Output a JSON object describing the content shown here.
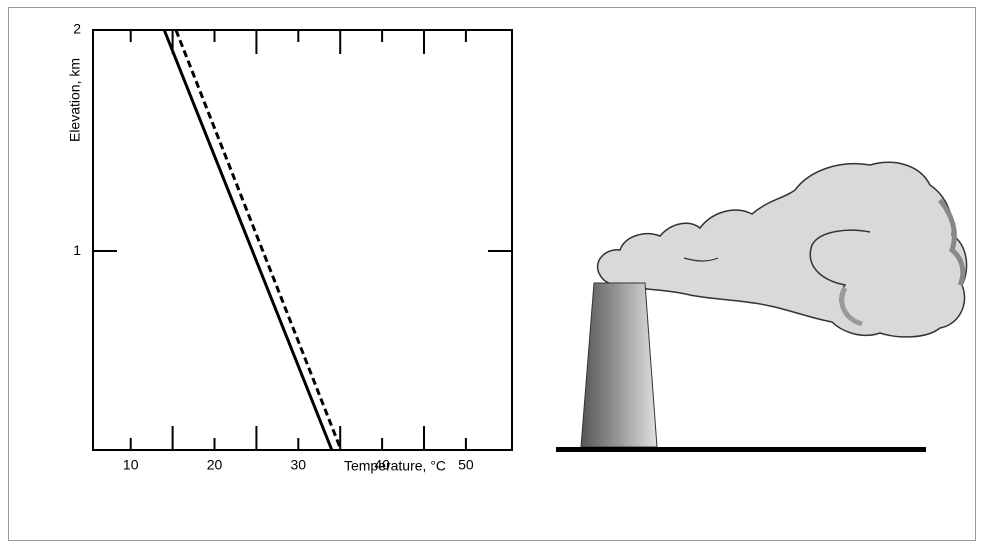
{
  "chart_data": {
    "type": "line",
    "xlabel": "Temperature, °C",
    "ylabel": "Elevation, km",
    "xlim": [
      5.5,
      55.5
    ],
    "ylim": [
      0.1,
      2
    ],
    "xticks": [
      10,
      20,
      30,
      40,
      50
    ],
    "xminorticks": [
      15,
      25,
      35,
      45
    ],
    "yticks": [
      1,
      2
    ],
    "series": [
      {
        "color": "#000000",
        "dash": "solid",
        "x": [
          14,
          34
        ],
        "values": [
          2,
          0.1
        ]
      },
      {
        "color": "#000000",
        "dash": "dashed",
        "x": [
          15.4,
          35.1
        ],
        "values": [
          2,
          0.1
        ]
      }
    ]
  }
}
